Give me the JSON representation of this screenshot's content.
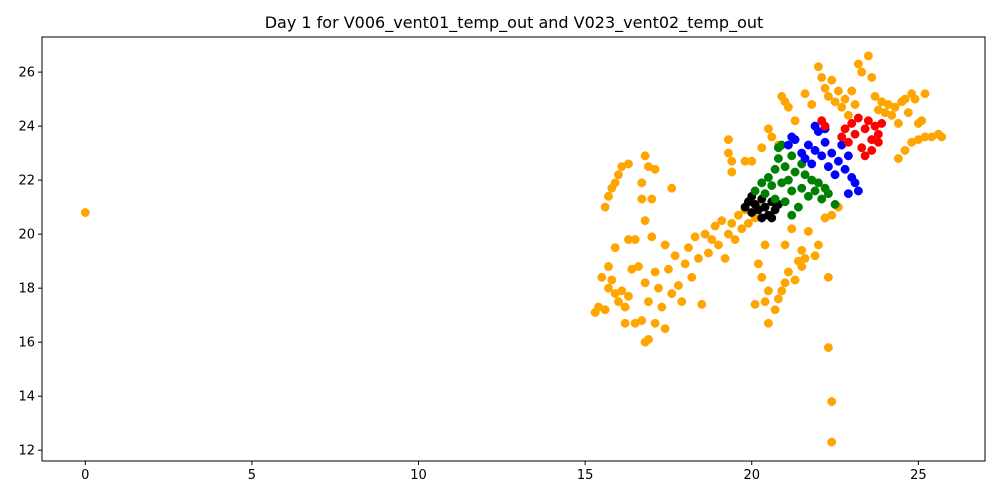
{
  "chart_data": {
    "type": "scatter",
    "title": "Day 1 for V006_vent01_temp_out and V023_vent02_temp_out",
    "xlabel": "",
    "ylabel": "",
    "xlim": [
      -1.3,
      27.0
    ],
    "ylim": [
      11.6,
      27.3
    ],
    "xticks": [
      0,
      5,
      10,
      15,
      20,
      25
    ],
    "yticks": [
      12,
      14,
      16,
      18,
      20,
      22,
      24,
      26
    ],
    "grid": false,
    "legend": "none",
    "series": [
      {
        "color": "#ffa500",
        "points": [
          [
            0.0,
            20.8
          ],
          [
            15.3,
            17.1
          ],
          [
            15.4,
            17.3
          ],
          [
            15.6,
            17.2
          ],
          [
            15.5,
            18.4
          ],
          [
            15.7,
            18.8
          ],
          [
            15.8,
            18.3
          ],
          [
            15.9,
            17.8
          ],
          [
            15.7,
            18.0
          ],
          [
            16.0,
            17.5
          ],
          [
            16.1,
            17.9
          ],
          [
            16.2,
            17.3
          ],
          [
            16.3,
            17.7
          ],
          [
            16.2,
            16.7
          ],
          [
            16.5,
            16.7
          ],
          [
            16.7,
            16.8
          ],
          [
            16.8,
            16.0
          ],
          [
            16.9,
            16.1
          ],
          [
            17.1,
            16.7
          ],
          [
            17.4,
            16.5
          ],
          [
            15.9,
            19.5
          ],
          [
            16.3,
            19.8
          ],
          [
            16.5,
            19.8
          ],
          [
            16.4,
            18.7
          ],
          [
            16.6,
            18.8
          ],
          [
            16.8,
            18.2
          ],
          [
            16.9,
            17.5
          ],
          [
            17.0,
            19.9
          ],
          [
            17.1,
            18.6
          ],
          [
            17.2,
            18.0
          ],
          [
            17.3,
            17.3
          ],
          [
            17.4,
            19.6
          ],
          [
            17.5,
            18.7
          ],
          [
            17.6,
            17.8
          ],
          [
            17.7,
            19.2
          ],
          [
            17.8,
            18.1
          ],
          [
            17.9,
            17.5
          ],
          [
            18.0,
            18.9
          ],
          [
            18.1,
            19.5
          ],
          [
            18.2,
            18.4
          ],
          [
            18.3,
            19.9
          ],
          [
            18.4,
            19.1
          ],
          [
            18.5,
            17.4
          ],
          [
            18.6,
            20.0
          ],
          [
            18.7,
            19.3
          ],
          [
            18.8,
            19.8
          ],
          [
            18.9,
            20.3
          ],
          [
            19.0,
            19.6
          ],
          [
            19.1,
            20.5
          ],
          [
            19.2,
            19.1
          ],
          [
            19.3,
            20.0
          ],
          [
            19.4,
            20.4
          ],
          [
            19.5,
            19.8
          ],
          [
            19.6,
            20.7
          ],
          [
            19.7,
            20.2
          ],
          [
            19.8,
            20.9
          ],
          [
            19.9,
            20.4
          ],
          [
            20.0,
            21.2
          ],
          [
            20.1,
            20.6
          ],
          [
            20.2,
            21.0
          ],
          [
            15.6,
            21.0
          ],
          [
            15.7,
            21.4
          ],
          [
            15.8,
            21.7
          ],
          [
            15.9,
            21.9
          ],
          [
            16.0,
            22.2
          ],
          [
            16.1,
            22.5
          ],
          [
            16.3,
            22.6
          ],
          [
            16.7,
            21.9
          ],
          [
            16.8,
            22.9
          ],
          [
            16.9,
            22.5
          ],
          [
            17.0,
            21.3
          ],
          [
            17.1,
            22.4
          ],
          [
            16.8,
            20.5
          ],
          [
            16.7,
            21.3
          ],
          [
            17.6,
            21.7
          ],
          [
            19.3,
            23.5
          ],
          [
            19.3,
            23.0
          ],
          [
            19.4,
            22.7
          ],
          [
            19.4,
            22.3
          ],
          [
            19.8,
            22.7
          ],
          [
            20.0,
            22.7
          ],
          [
            20.3,
            23.2
          ],
          [
            20.5,
            23.9
          ],
          [
            20.6,
            23.6
          ],
          [
            20.8,
            23.3
          ],
          [
            20.9,
            25.1
          ],
          [
            21.0,
            24.9
          ],
          [
            21.1,
            24.7
          ],
          [
            21.3,
            24.2
          ],
          [
            21.6,
            25.2
          ],
          [
            21.8,
            24.8
          ],
          [
            22.0,
            26.2
          ],
          [
            22.1,
            25.8
          ],
          [
            22.2,
            25.4
          ],
          [
            22.3,
            25.1
          ],
          [
            22.4,
            25.7
          ],
          [
            22.5,
            24.9
          ],
          [
            22.6,
            25.3
          ],
          [
            22.7,
            24.7
          ],
          [
            22.8,
            25.0
          ],
          [
            22.9,
            24.4
          ],
          [
            23.0,
            25.3
          ],
          [
            23.1,
            24.8
          ],
          [
            23.2,
            26.3
          ],
          [
            23.3,
            26.0
          ],
          [
            23.5,
            26.6
          ],
          [
            23.6,
            25.8
          ],
          [
            23.7,
            25.1
          ],
          [
            23.8,
            24.6
          ],
          [
            23.9,
            24.9
          ],
          [
            24.0,
            24.5
          ],
          [
            24.1,
            24.8
          ],
          [
            24.2,
            24.4
          ],
          [
            24.3,
            24.7
          ],
          [
            24.4,
            24.1
          ],
          [
            24.5,
            24.9
          ],
          [
            24.6,
            25.0
          ],
          [
            24.7,
            24.5
          ],
          [
            24.8,
            25.2
          ],
          [
            24.9,
            25.0
          ],
          [
            25.0,
            24.1
          ],
          [
            25.2,
            23.6
          ],
          [
            25.4,
            23.6
          ],
          [
            25.6,
            23.7
          ],
          [
            25.7,
            23.6
          ],
          [
            24.4,
            22.8
          ],
          [
            24.6,
            23.1
          ],
          [
            24.8,
            23.4
          ],
          [
            25.0,
            23.5
          ],
          [
            25.1,
            24.2
          ],
          [
            25.2,
            25.2
          ],
          [
            20.4,
            19.6
          ],
          [
            20.2,
            18.9
          ],
          [
            20.3,
            18.4
          ],
          [
            20.5,
            17.9
          ],
          [
            20.4,
            17.5
          ],
          [
            20.7,
            17.2
          ],
          [
            20.8,
            17.6
          ],
          [
            20.9,
            17.9
          ],
          [
            21.0,
            18.2
          ],
          [
            21.1,
            18.6
          ],
          [
            21.3,
            18.3
          ],
          [
            21.4,
            19.0
          ],
          [
            21.5,
            18.8
          ],
          [
            21.6,
            19.1
          ],
          [
            21.7,
            20.1
          ],
          [
            21.9,
            19.2
          ],
          [
            22.0,
            19.6
          ],
          [
            20.1,
            17.4
          ],
          [
            20.5,
            16.7
          ],
          [
            21.0,
            19.6
          ],
          [
            21.2,
            20.2
          ],
          [
            21.5,
            19.4
          ],
          [
            22.3,
            18.4
          ],
          [
            22.3,
            15.8
          ],
          [
            22.4,
            13.8
          ],
          [
            22.4,
            12.3
          ],
          [
            22.2,
            20.6
          ],
          [
            22.4,
            20.7
          ],
          [
            22.6,
            21.0
          ]
        ]
      },
      {
        "color": "#000000",
        "points": [
          [
            19.8,
            21.0
          ],
          [
            19.9,
            21.2
          ],
          [
            20.0,
            20.8
          ],
          [
            20.1,
            21.1
          ],
          [
            20.2,
            20.9
          ],
          [
            20.3,
            21.3
          ],
          [
            20.4,
            21.0
          ],
          [
            20.5,
            20.7
          ],
          [
            20.6,
            21.2
          ],
          [
            20.7,
            20.9
          ],
          [
            20.8,
            21.1
          ],
          [
            20.0,
            21.4
          ],
          [
            20.3,
            20.6
          ],
          [
            20.6,
            20.6
          ]
        ]
      },
      {
        "color": "#008000",
        "points": [
          [
            20.1,
            21.6
          ],
          [
            20.3,
            21.9
          ],
          [
            20.4,
            21.5
          ],
          [
            20.5,
            22.1
          ],
          [
            20.6,
            21.8
          ],
          [
            20.7,
            22.4
          ],
          [
            20.7,
            21.3
          ],
          [
            20.8,
            22.8
          ],
          [
            20.9,
            21.9
          ],
          [
            21.0,
            22.5
          ],
          [
            21.0,
            21.2
          ],
          [
            21.1,
            22.0
          ],
          [
            21.2,
            22.9
          ],
          [
            21.2,
            21.6
          ],
          [
            21.3,
            22.3
          ],
          [
            21.4,
            21.0
          ],
          [
            21.5,
            22.6
          ],
          [
            21.5,
            21.7
          ],
          [
            21.6,
            22.2
          ],
          [
            21.7,
            21.4
          ],
          [
            21.8,
            22.0
          ],
          [
            21.9,
            21.6
          ],
          [
            22.0,
            21.9
          ],
          [
            22.1,
            21.3
          ],
          [
            22.2,
            21.7
          ],
          [
            22.3,
            21.5
          ],
          [
            20.8,
            23.2
          ],
          [
            20.9,
            23.3
          ],
          [
            21.2,
            20.7
          ],
          [
            22.5,
            21.1
          ]
        ]
      },
      {
        "color": "#0000ff",
        "points": [
          [
            21.1,
            23.3
          ],
          [
            21.2,
            23.6
          ],
          [
            21.3,
            23.5
          ],
          [
            21.5,
            23.0
          ],
          [
            21.6,
            22.8
          ],
          [
            21.7,
            23.3
          ],
          [
            21.8,
            22.6
          ],
          [
            21.9,
            23.1
          ],
          [
            22.0,
            23.8
          ],
          [
            22.1,
            22.9
          ],
          [
            22.2,
            23.4
          ],
          [
            22.3,
            22.5
          ],
          [
            22.4,
            23.0
          ],
          [
            22.5,
            22.2
          ],
          [
            22.6,
            22.7
          ],
          [
            22.7,
            23.3
          ],
          [
            22.8,
            22.4
          ],
          [
            22.9,
            22.9
          ],
          [
            23.0,
            22.1
          ],
          [
            23.1,
            21.9
          ],
          [
            23.2,
            21.6
          ],
          [
            22.9,
            21.5
          ],
          [
            21.9,
            24.0
          ],
          [
            22.2,
            23.9
          ]
        ]
      },
      {
        "color": "#ff0000",
        "points": [
          [
            22.1,
            24.2
          ],
          [
            22.2,
            24.0
          ],
          [
            22.7,
            23.6
          ],
          [
            22.8,
            23.9
          ],
          [
            22.9,
            23.4
          ],
          [
            23.0,
            24.1
          ],
          [
            23.1,
            23.7
          ],
          [
            23.2,
            24.3
          ],
          [
            23.3,
            23.2
          ],
          [
            23.4,
            23.9
          ],
          [
            23.5,
            24.2
          ],
          [
            23.6,
            23.5
          ],
          [
            23.7,
            24.0
          ],
          [
            23.8,
            23.7
          ],
          [
            23.9,
            24.1
          ],
          [
            23.4,
            22.9
          ],
          [
            23.6,
            23.1
          ],
          [
            23.8,
            23.4
          ]
        ]
      }
    ]
  }
}
